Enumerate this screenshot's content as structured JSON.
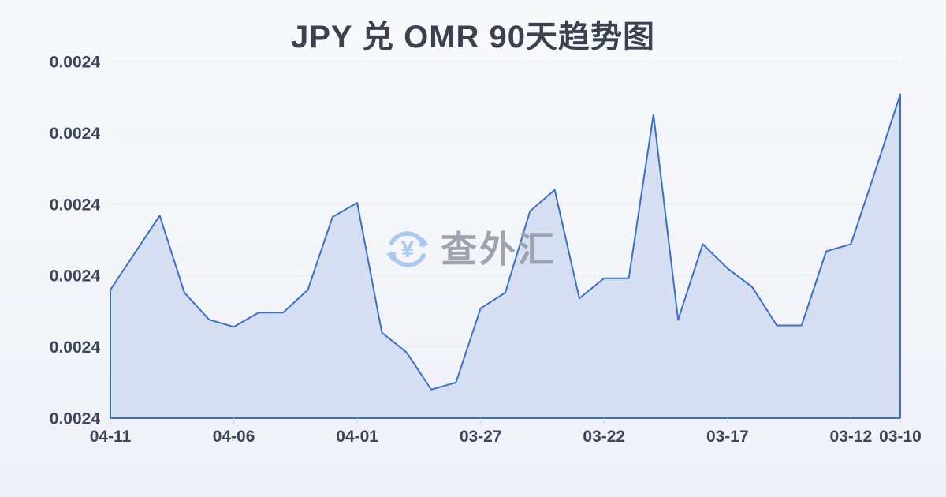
{
  "page": {
    "title": "JPY 兑 OMR 90天趋势图"
  },
  "watermark": {
    "text": "查外汇",
    "icon": "currency-exchange-refresh-icon",
    "icon_color": "#a9c6ef",
    "text_color": "#9aa0ab"
  },
  "colors": {
    "line": "#3a70c9",
    "area_fill": "#d6def2",
    "grid": "#e5e8ee",
    "tick": "#c8ccd5",
    "axis_label": "#3b4557",
    "title": "#3a4250",
    "background_top": "#f7f8fb",
    "background_bottom": "#eef1f6"
  },
  "chart_data": {
    "type": "area",
    "title": "JPY 兑 OMR 90天趋势图",
    "xlabel": "",
    "ylabel": "",
    "legend": "none",
    "grid": "horizontal",
    "x_note": "dates run newest (04-11) on left to oldest (03-10) on right",
    "x": [
      "04-11",
      "04-10",
      "04-09",
      "04-08",
      "04-07",
      "04-06",
      "04-05",
      "04-04",
      "04-03",
      "04-02",
      "04-01",
      "03-31",
      "03-30",
      "03-29",
      "03-28",
      "03-27",
      "03-26",
      "03-25",
      "03-24",
      "03-23",
      "03-22",
      "03-21",
      "03-20",
      "03-19",
      "03-18",
      "03-17",
      "03-16",
      "03-15",
      "03-14",
      "03-13",
      "03-12",
      "03-11",
      "03-10"
    ],
    "values": [
      0.002404,
      0.0024066,
      0.0024092,
      0.0024038,
      0.0024019,
      0.0024014,
      0.0024024,
      0.0024024,
      0.002404,
      0.0024091,
      0.0024101,
      0.002401,
      0.0023996,
      0.002397,
      0.0023975,
      0.0024027,
      0.0024038,
      0.0024095,
      0.002411,
      0.0024034,
      0.0024048,
      0.0024048,
      0.0024163,
      0.0024019,
      0.0024072,
      0.0024055,
      0.0024042,
      0.0024015,
      0.0024015,
      0.0024067,
      0.0024072,
      0.0024124,
      0.0024177
    ],
    "x_tick_labels": [
      "04-11",
      "04-06",
      "04-01",
      "03-27",
      "03-22",
      "03-17",
      "03-12",
      "03-10"
    ],
    "x_tick_indices": [
      0,
      5,
      10,
      15,
      20,
      25,
      30,
      32
    ],
    "y_tick_labels": [
      "0.0024",
      "0.0024",
      "0.0024",
      "0.0024",
      "0.0024",
      "0.0024"
    ],
    "ylim": [
      0.002395,
      0.00242
    ],
    "y_note": "all y tick labels render as 0.0024 due to 4-decimal rounding"
  }
}
